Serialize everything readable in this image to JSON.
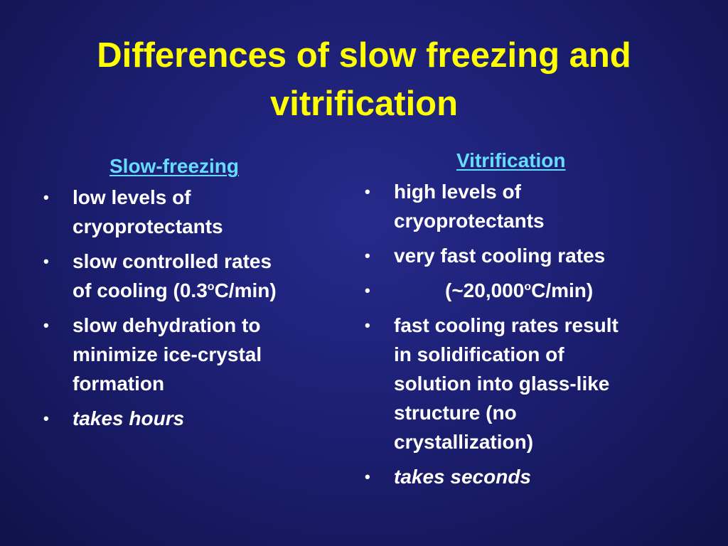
{
  "slide": {
    "title_line1": "Differences of slow freezing and",
    "title_line2": "vitrification"
  },
  "left": {
    "heading": "Slow-freezing",
    "bullets": [
      {
        "line1": "low levels of",
        "line2": "cryoprotectants"
      },
      {
        "line1": "slow controlled rates",
        "line2a": "of cooling (0.3",
        "sup": "o",
        "line2b": "C/min)"
      },
      {
        "line1": "slow dehydration to",
        "line2": "minimize ice-crystal",
        "line3": "formation"
      },
      {
        "line1": "takes hours"
      }
    ]
  },
  "right": {
    "heading": "Vitrification",
    "bullets": [
      {
        "line1": "high levels of",
        "line2": "cryoprotectants"
      },
      {
        "line1": "very fast cooling rates"
      },
      {
        "line1a": "(~20,000",
        "sup": "o",
        "line1b": "C/min)"
      },
      {
        "line1": "fast cooling rates result",
        "line2": "in solidification of",
        "line3": "solution into glass-like",
        "line4": "structure (no",
        "line5": "crystallization)"
      },
      {
        "line1": "takes seconds"
      }
    ]
  },
  "bullet_glyph": "•"
}
